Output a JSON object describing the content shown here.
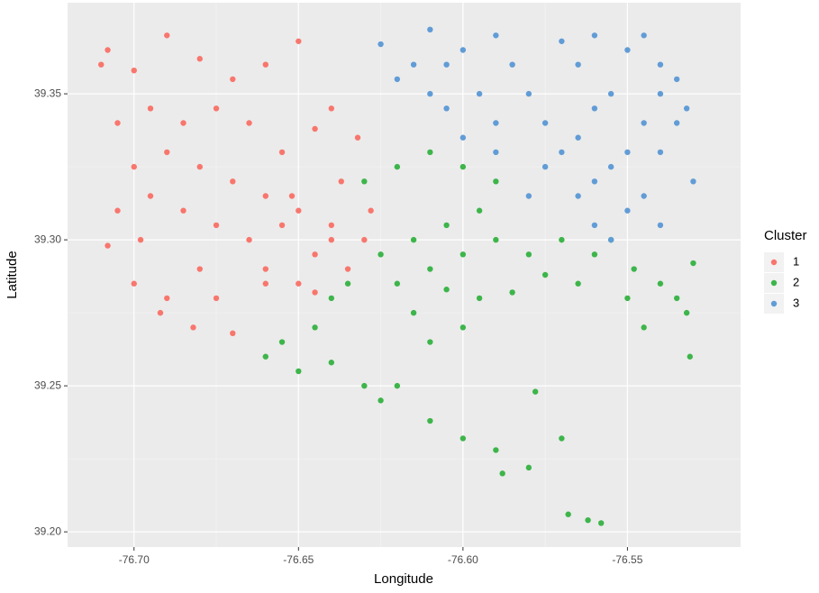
{
  "chart_data": {
    "type": "scatter",
    "x_label": "Longitude",
    "y_label": "Latitude",
    "legend_title": "Cluster",
    "legend": "right",
    "grid": true,
    "xlim": [
      -76.7202,
      -76.5156
    ],
    "ylim": [
      39.1948,
      39.3812
    ],
    "xticks": [
      {
        "value": -76.7,
        "label": "-76.70"
      },
      -76.65,
      {
        "value": -76.6,
        "label": "-76.60"
      },
      -76.55
    ],
    "yticks": [
      {
        "value": 39.2,
        "label": "39.20"
      },
      39.25,
      {
        "value": 39.3,
        "label": "39.30"
      },
      39.35
    ],
    "series": [
      {
        "name": "1",
        "color": "#F8766D",
        "x": [
          -76.708,
          -76.7,
          -76.69,
          -76.68,
          -76.67,
          -76.66,
          -76.65,
          -76.64,
          -76.632,
          -76.705,
          -76.695,
          -76.685,
          -76.675,
          -76.665,
          -76.655,
          -76.7,
          -76.69,
          -76.68,
          -76.67,
          -76.66,
          -76.65,
          -76.64,
          -76.63,
          -76.705,
          -76.695,
          -76.685,
          -76.675,
          -76.665,
          -76.655,
          -76.645,
          -76.635,
          -76.708,
          -76.7,
          -76.69,
          -76.692,
          -76.68,
          -76.675,
          -76.67,
          -76.66,
          -76.65,
          -76.645,
          -76.64,
          -76.628,
          -76.637,
          -76.645,
          -76.66,
          -76.682,
          -76.698,
          -76.71,
          -76.652
        ],
        "y": [
          39.365,
          39.358,
          39.37,
          39.362,
          39.355,
          39.36,
          39.368,
          39.345,
          39.335,
          39.34,
          39.345,
          39.34,
          39.345,
          39.34,
          39.33,
          39.325,
          39.33,
          39.325,
          39.32,
          39.315,
          39.31,
          39.305,
          39.3,
          39.31,
          39.315,
          39.31,
          39.305,
          39.3,
          39.305,
          39.295,
          39.29,
          39.298,
          39.285,
          39.28,
          39.275,
          39.29,
          39.28,
          39.268,
          39.285,
          39.285,
          39.282,
          39.3,
          39.31,
          39.32,
          39.338,
          39.29,
          39.27,
          39.3,
          39.36,
          39.315
        ]
      },
      {
        "name": "2",
        "color": "#3DB54A",
        "x": [
          -76.63,
          -76.62,
          -76.61,
          -76.6,
          -76.59,
          -76.595,
          -76.605,
          -76.615,
          -76.625,
          -76.62,
          -76.61,
          -76.6,
          -76.59,
          -76.58,
          -76.57,
          -76.56,
          -76.565,
          -76.575,
          -76.585,
          -76.595,
          -76.605,
          -76.615,
          -76.635,
          -76.64,
          -76.645,
          -76.655,
          -76.66,
          -76.65,
          -76.64,
          -76.63,
          -76.625,
          -76.62,
          -76.61,
          -76.6,
          -76.59,
          -76.588,
          -76.58,
          -76.578,
          -76.57,
          -76.568,
          -76.562,
          -76.558,
          -76.548,
          -76.54,
          -76.535,
          -76.532,
          -76.53,
          -76.531,
          -76.55,
          -76.545,
          -76.6,
          -76.555,
          -76.61
        ],
        "y": [
          39.32,
          39.325,
          39.33,
          39.325,
          39.32,
          39.31,
          39.305,
          39.3,
          39.295,
          39.285,
          39.29,
          39.295,
          39.3,
          39.295,
          39.3,
          39.295,
          39.285,
          39.288,
          39.282,
          39.28,
          39.283,
          39.275,
          39.285,
          39.28,
          39.27,
          39.265,
          39.26,
          39.255,
          39.258,
          39.25,
          39.245,
          39.25,
          39.238,
          39.232,
          39.228,
          39.22,
          39.222,
          39.248,
          39.232,
          39.206,
          39.204,
          39.203,
          39.29,
          39.285,
          39.28,
          39.275,
          39.292,
          39.26,
          39.28,
          39.27,
          39.27,
          39.3,
          39.265
        ]
      },
      {
        "name": "3",
        "color": "#619CD6",
        "x": [
          -76.625,
          -76.615,
          -76.61,
          -76.6,
          -76.59,
          -76.585,
          -76.595,
          -76.605,
          -76.61,
          -76.6,
          -76.59,
          -76.58,
          -76.575,
          -76.57,
          -76.56,
          -76.565,
          -76.555,
          -76.55,
          -76.545,
          -76.54,
          -76.535,
          -76.54,
          -76.545,
          -76.55,
          -76.54,
          -76.56,
          -76.555,
          -76.53,
          -76.535,
          -76.56,
          -76.55,
          -76.545,
          -76.54,
          -76.565,
          -76.57,
          -76.56,
          -76.555,
          -76.575,
          -76.58,
          -76.59,
          -76.605,
          -76.62,
          -76.532,
          -76.565
        ],
        "y": [
          39.367,
          39.36,
          39.372,
          39.365,
          39.37,
          39.36,
          39.35,
          39.345,
          39.35,
          39.335,
          39.34,
          39.35,
          39.34,
          39.33,
          39.32,
          39.315,
          39.325,
          39.33,
          39.34,
          39.35,
          39.355,
          39.33,
          39.315,
          39.31,
          39.305,
          39.305,
          39.3,
          39.32,
          39.34,
          39.37,
          39.365,
          39.37,
          39.36,
          39.36,
          39.368,
          39.345,
          39.35,
          39.325,
          39.315,
          39.33,
          39.36,
          39.355,
          39.345,
          39.335
        ]
      }
    ]
  }
}
